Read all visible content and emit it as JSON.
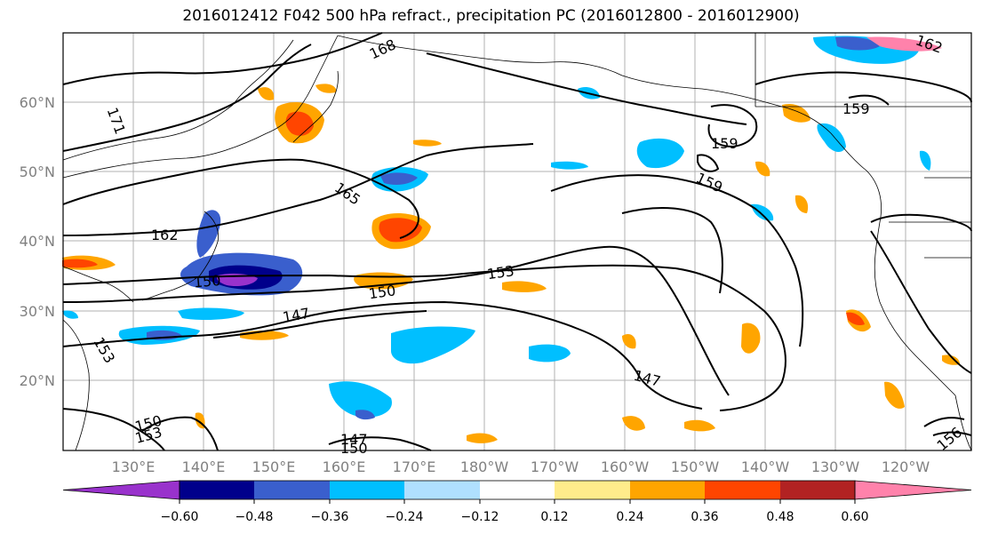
{
  "title": "2016012412 F042 500 hPa refract., precipitation PC (2016012800 - 2016012900)",
  "lat_labels": [
    "60°N",
    "50°N",
    "40°N",
    "30°N",
    "20°N"
  ],
  "lon_labels": [
    "130°E",
    "140°E",
    "150°E",
    "160°E",
    "170°E",
    "180°W",
    "170°W",
    "160°W",
    "150°W",
    "140°W",
    "130°W",
    "120°W"
  ],
  "colorbar": {
    "ticks": [
      "−0.60",
      "−0.48",
      "−0.36",
      "−0.24",
      "−0.12",
      "0.12",
      "0.24",
      "0.36",
      "0.48",
      "0.60"
    ],
    "colors": [
      "#9932cc",
      "#00008b",
      "#3a5fcd",
      "#00bfff",
      "#b0e0ff",
      "#ffffff",
      "#ffec8b",
      "#ffa500",
      "#ff4500",
      "#b22222",
      "#ff82ab"
    ]
  },
  "contour_labels": [
    "168",
    "171",
    "162",
    "165",
    "159",
    "159",
    "159",
    "153",
    "150",
    "150",
    "147",
    "147",
    "153",
    "150",
    "153",
    "147",
    "150",
    "156",
    "162"
  ]
}
